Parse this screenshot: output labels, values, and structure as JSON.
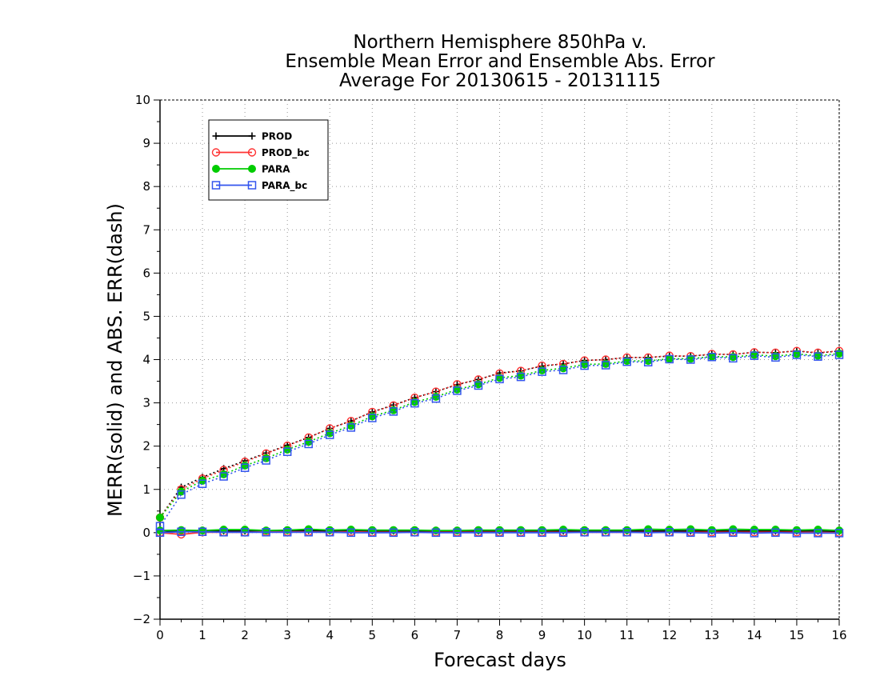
{
  "chart_data": {
    "type": "line",
    "title_lines": [
      "Northern Hemisphere 850hPa v.",
      "Ensemble Mean Error and Ensemble Abs. Error",
      "Average For 20130615 - 20131115"
    ],
    "xlabel": "Forecast days",
    "ylabel": "MERR(solid) and ABS. ERR(dash)",
    "xlim": [
      0,
      16
    ],
    "ylim": [
      -2,
      10
    ],
    "xticks": [
      0,
      1,
      2,
      3,
      4,
      5,
      6,
      7,
      8,
      9,
      10,
      11,
      12,
      13,
      14,
      15,
      16
    ],
    "yticks": [
      -2,
      -1,
      0,
      1,
      2,
      3,
      4,
      5,
      6,
      7,
      8,
      9,
      10
    ],
    "grid": true,
    "legend_position": "top-left",
    "x": [
      0,
      0.5,
      1,
      1.5,
      2,
      2.5,
      3,
      3.5,
      4,
      4.5,
      5,
      5.5,
      6,
      6.5,
      7,
      7.5,
      8,
      8.5,
      9,
      9.5,
      10,
      10.5,
      11,
      11.5,
      12,
      12.5,
      13,
      13.5,
      14,
      14.5,
      15,
      15.5,
      16
    ],
    "series": [
      {
        "name": "PROD",
        "color": "#000000",
        "marker": "plus",
        "merr": [
          0.05,
          0.02,
          0.04,
          0.04,
          0.04,
          0.04,
          0.05,
          0.05,
          0.04,
          0.05,
          0.04,
          0.04,
          0.04,
          0.04,
          0.04,
          0.04,
          0.04,
          0.04,
          0.04,
          0.04,
          0.04,
          0.04,
          0.04,
          0.04,
          0.04,
          0.04,
          0.04,
          0.04,
          0.04,
          0.04,
          0.04,
          0.04,
          0.03
        ],
        "abserr": [
          0.35,
          1.05,
          1.28,
          1.48,
          1.66,
          1.84,
          2.02,
          2.2,
          2.41,
          2.58,
          2.79,
          2.95,
          3.12,
          3.26,
          3.42,
          3.54,
          3.69,
          3.74,
          3.85,
          3.9,
          3.98,
          4.0,
          4.05,
          4.05,
          4.08,
          4.08,
          4.12,
          4.12,
          4.17,
          4.16,
          4.2,
          4.15,
          4.2
        ]
      },
      {
        "name": "PROD_bc",
        "color": "#ff3333",
        "marker": "open-circle",
        "merr": [
          0.0,
          -0.04,
          0.01,
          0.01,
          0.01,
          0.02,
          0.02,
          0.02,
          0.01,
          0.02,
          0.01,
          0.01,
          0.01,
          0.01,
          0.01,
          0.01,
          0.01,
          0.01,
          0.01,
          0.01,
          0.01,
          0.01,
          0.01,
          0.01,
          0.01,
          0.01,
          0.01,
          0.01,
          0.01,
          0.01,
          0.01,
          0.0,
          0.0
        ],
        "abserr": [
          0.35,
          1.0,
          1.25,
          1.45,
          1.64,
          1.83,
          2.01,
          2.2,
          2.41,
          2.58,
          2.79,
          2.94,
          3.12,
          3.26,
          3.43,
          3.54,
          3.68,
          3.74,
          3.86,
          3.9,
          3.98,
          4.0,
          4.05,
          4.05,
          4.09,
          4.08,
          4.13,
          4.12,
          4.17,
          4.16,
          4.2,
          4.16,
          4.2
        ]
      },
      {
        "name": "PARA",
        "color": "#00cc00",
        "marker": "filled-circle",
        "merr": [
          0.05,
          0.06,
          0.05,
          0.07,
          0.07,
          0.05,
          0.06,
          0.08,
          0.06,
          0.07,
          0.06,
          0.06,
          0.06,
          0.05,
          0.05,
          0.06,
          0.06,
          0.06,
          0.06,
          0.07,
          0.06,
          0.06,
          0.06,
          0.08,
          0.07,
          0.08,
          0.06,
          0.08,
          0.07,
          0.07,
          0.06,
          0.07,
          0.05
        ],
        "abserr": [
          0.35,
          0.95,
          1.2,
          1.35,
          1.55,
          1.72,
          1.92,
          2.1,
          2.3,
          2.47,
          2.69,
          2.83,
          3.02,
          3.14,
          3.31,
          3.43,
          3.58,
          3.63,
          3.75,
          3.8,
          3.89,
          3.9,
          3.97,
          3.97,
          4.02,
          4.02,
          4.07,
          4.06,
          4.11,
          4.08,
          4.13,
          4.09,
          4.14
        ]
      },
      {
        "name": "PARA_bc",
        "color": "#3355ee",
        "marker": "open-square",
        "merr": [
          0.0,
          0.02,
          0.02,
          0.01,
          0.01,
          0.01,
          0.01,
          0.01,
          0.01,
          0.0,
          0.0,
          0.0,
          0.01,
          0.0,
          0.0,
          0.0,
          0.0,
          0.0,
          0.0,
          0.0,
          0.01,
          0.01,
          0.01,
          0.0,
          0.01,
          0.0,
          -0.01,
          0.0,
          -0.01,
          0.0,
          -0.01,
          -0.01,
          -0.01
        ],
        "abserr": [
          0.15,
          0.88,
          1.13,
          1.3,
          1.5,
          1.67,
          1.87,
          2.05,
          2.26,
          2.43,
          2.65,
          2.8,
          2.99,
          3.1,
          3.28,
          3.4,
          3.55,
          3.6,
          3.72,
          3.76,
          3.86,
          3.87,
          3.95,
          3.94,
          4.01,
          4.0,
          4.06,
          4.03,
          4.09,
          4.05,
          4.11,
          4.07,
          4.11
        ]
      }
    ]
  }
}
